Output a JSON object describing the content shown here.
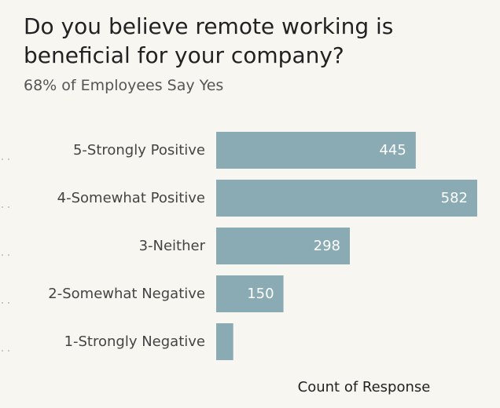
{
  "chart_data": {
    "type": "bar",
    "orientation": "horizontal",
    "title": "Do you believe remote working is beneficial for your company?",
    "subtitle": "68% of Employees Say Yes",
    "categories": [
      "5-Strongly Positive",
      "4-Somewhat Positive",
      "3-Neither",
      "2-Somewhat Negative",
      "1-Strongly Negative"
    ],
    "values": [
      445,
      582,
      298,
      150,
      38
    ],
    "data_labels": [
      "445",
      "582",
      "298",
      "150",
      ""
    ],
    "xlabel": "Count of Response",
    "ylabel": "",
    "xlim": [
      0,
      582
    ],
    "grid": false,
    "legend": "none",
    "bar_color": "#8aabb4",
    "value_label_color": "#ffffff"
  }
}
